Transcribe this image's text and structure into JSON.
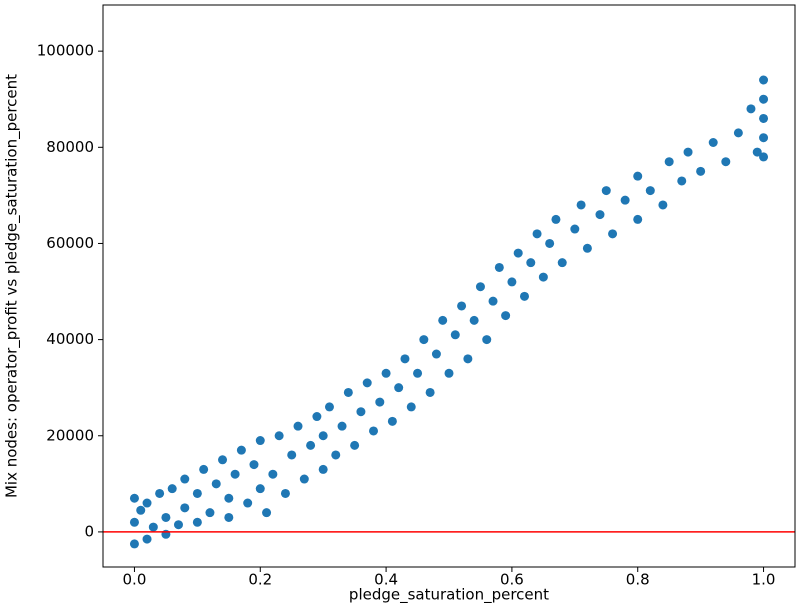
{
  "chart_data": {
    "type": "scatter",
    "xlabel": "pledge_saturation_percent",
    "ylabel": "Mix nodes:  operator_profit  vs  pledge_saturation_percent",
    "color": "#1f77b4",
    "reference_line": {
      "value": 0,
      "color": "#ff0000"
    },
    "xlim": [
      -0.05,
      1.05
    ],
    "ylim": [
      -7300,
      109600
    ],
    "xticks": [
      {
        "value": 0,
        "label": "0.0"
      },
      0.2,
      0.4,
      0.6,
      0.8,
      {
        "value": 1,
        "label": "1.0"
      }
    ],
    "yticks": [
      0,
      20000,
      40000,
      60000,
      80000,
      100000
    ],
    "x": [
      0,
      0,
      0,
      0.01,
      0.02,
      0.02,
      0.03,
      0.04,
      0.05,
      0.05,
      0.06,
      0.07,
      0.08,
      0.08,
      0.1,
      0.1,
      0.11,
      0.12,
      0.13,
      0.14,
      0.15,
      0.15,
      0.16,
      0.17,
      0.18,
      0.19,
      0.2,
      0.2,
      0.21,
      0.22,
      0.23,
      0.24,
      0.25,
      0.26,
      0.27,
      0.28,
      0.29,
      0.3,
      0.3,
      0.31,
      0.32,
      0.33,
      0.34,
      0.35,
      0.36,
      0.37,
      0.38,
      0.39,
      0.4,
      0.41,
      0.42,
      0.43,
      0.44,
      0.45,
      0.46,
      0.47,
      0.48,
      0.49,
      0.5,
      0.51,
      0.52,
      0.53,
      0.54,
      0.55,
      0.56,
      0.57,
      0.58,
      0.59,
      0.6,
      0.61,
      0.62,
      0.63,
      0.64,
      0.65,
      0.66,
      0.67,
      0.68,
      0.7,
      0.71,
      0.72,
      0.74,
      0.75,
      0.76,
      0.78,
      0.8,
      0.8,
      0.82,
      0.84,
      0.85,
      0.87,
      0.88,
      0.9,
      0.92,
      0.94,
      0.96,
      0.99,
      1,
      1,
      1,
      1,
      1,
      0.98
    ],
    "values": [
      -2500,
      7000,
      2000,
      4500,
      -1500,
      6000,
      1000,
      8000,
      -500,
      3000,
      9000,
      1500,
      5000,
      11000,
      2000,
      8000,
      13000,
      4000,
      10000,
      15000,
      3000,
      7000,
      12000,
      17000,
      6000,
      14000,
      9000,
      19000,
      4000,
      12000,
      20000,
      8000,
      16000,
      22000,
      11000,
      18000,
      24000,
      13000,
      20000,
      26000,
      16000,
      22000,
      29000,
      18000,
      25000,
      31000,
      21000,
      27000,
      33000,
      23000,
      30000,
      36000,
      26000,
      33000,
      40000,
      29000,
      37000,
      44000,
      33000,
      41000,
      47000,
      36000,
      44000,
      51000,
      40000,
      48000,
      55000,
      45000,
      52000,
      58000,
      49000,
      56000,
      62000,
      53000,
      60000,
      65000,
      56000,
      63000,
      68000,
      59000,
      66000,
      71000,
      62000,
      69000,
      74000,
      65000,
      71000,
      68000,
      77000,
      73000,
      79000,
      75000,
      81000,
      77000,
      83000,
      79000,
      82000,
      86000,
      90000,
      94000,
      78000,
      88000
    ]
  }
}
